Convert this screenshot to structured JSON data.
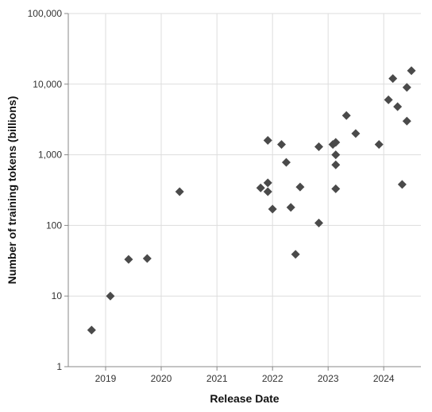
{
  "chart_data": {
    "type": "scatter",
    "xlabel": "Release Date",
    "ylabel": "Number of training tokens (billions)",
    "x_scale": "time",
    "y_scale": "log",
    "xlim": [
      "2018-05-01",
      "2024-09-01"
    ],
    "ylim": [
      1,
      100000
    ],
    "x_ticks": [
      "2019",
      "2020",
      "2021",
      "2022",
      "2023",
      "2024"
    ],
    "y_ticks": [
      1,
      10,
      100,
      1000,
      10000,
      100000
    ],
    "y_tick_labels": [
      "1",
      "10",
      "100",
      "1,000",
      "10,000",
      "100,000"
    ],
    "grid": true,
    "marker": "diamond",
    "marker_color": "#4a4a4a",
    "points": [
      {
        "x": "2018-10-01",
        "y": 3.3
      },
      {
        "x": "2019-02-01",
        "y": 10
      },
      {
        "x": "2019-06-01",
        "y": 33
      },
      {
        "x": "2019-10-01",
        "y": 34
      },
      {
        "x": "2020-05-01",
        "y": 300
      },
      {
        "x": "2021-10-15",
        "y": 340
      },
      {
        "x": "2021-12-01",
        "y": 1600
      },
      {
        "x": "2021-12-01",
        "y": 400
      },
      {
        "x": "2021-12-01",
        "y": 300
      },
      {
        "x": "2022-01-01",
        "y": 170
      },
      {
        "x": "2022-03-01",
        "y": 1400
      },
      {
        "x": "2022-04-01",
        "y": 780
      },
      {
        "x": "2022-05-01",
        "y": 180
      },
      {
        "x": "2022-06-01",
        "y": 39
      },
      {
        "x": "2022-07-01",
        "y": 350
      },
      {
        "x": "2022-11-01",
        "y": 1300
      },
      {
        "x": "2022-11-01",
        "y": 108
      },
      {
        "x": "2023-02-01",
        "y": 1400
      },
      {
        "x": "2023-02-20",
        "y": 1500
      },
      {
        "x": "2023-02-20",
        "y": 1000
      },
      {
        "x": "2023-02-20",
        "y": 720
      },
      {
        "x": "2023-02-20",
        "y": 330
      },
      {
        "x": "2023-05-01",
        "y": 3600
      },
      {
        "x": "2023-07-01",
        "y": 2000
      },
      {
        "x": "2023-12-01",
        "y": 1400
      },
      {
        "x": "2024-02-01",
        "y": 6000
      },
      {
        "x": "2024-03-01",
        "y": 12000
      },
      {
        "x": "2024-04-01",
        "y": 4800
      },
      {
        "x": "2024-05-01",
        "y": 380
      },
      {
        "x": "2024-06-01",
        "y": 9000
      },
      {
        "x": "2024-06-01",
        "y": 3000
      },
      {
        "x": "2024-07-01",
        "y": 15500
      }
    ]
  }
}
